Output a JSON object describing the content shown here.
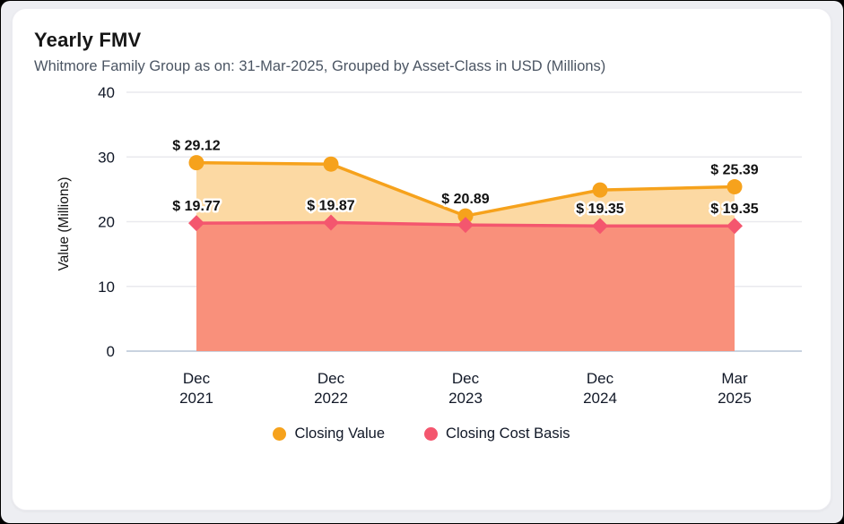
{
  "header": {
    "title": "Yearly FMV",
    "subtitle": "Whitmore Family Group as on: 31-Mar-2025, Grouped by Asset-Class in USD (Millions)"
  },
  "chart_data": {
    "type": "area",
    "title": "Yearly FMV",
    "subtitle": "Whitmore Family Group as on: 31-Mar-2025, Grouped by Asset-Class in USD (Millions)",
    "xlabel": "",
    "ylabel": "Value (Millions)",
    "ylim": [
      0,
      40
    ],
    "yticks": [
      0,
      10,
      20,
      30,
      40
    ],
    "grid": "horizontal",
    "legend_position": "bottom",
    "categories": [
      "Dec 2021",
      "Dec 2022",
      "Dec 2023",
      "Dec 2024",
      "Mar 2025"
    ],
    "series": [
      {
        "name": "Closing Value",
        "marker": "circle",
        "line_color": "#F6A21C",
        "fill_color": "#FCD9A3",
        "values": [
          29.12,
          28.9,
          20.89,
          24.9,
          25.39
        ],
        "point_labels": [
          "$ 29.12",
          null,
          "$ 20.89",
          null,
          "$ 25.39"
        ]
      },
      {
        "name": "Closing Cost Basis",
        "marker": "diamond",
        "line_color": "#F4566E",
        "fill_color": "#F9907B",
        "values": [
          19.77,
          19.87,
          19.5,
          19.35,
          19.35
        ],
        "point_labels": [
          "$ 19.77",
          "$ 19.87",
          null,
          "$ 19.35",
          "$ 19.35"
        ]
      }
    ],
    "theme": {
      "grid_color": "#E9E9EE",
      "zero_line_color": "#C9D3E0",
      "tick_color": "#111827",
      "label_text_color": "#111111",
      "label_halo_color": "#FFFFFF"
    }
  }
}
